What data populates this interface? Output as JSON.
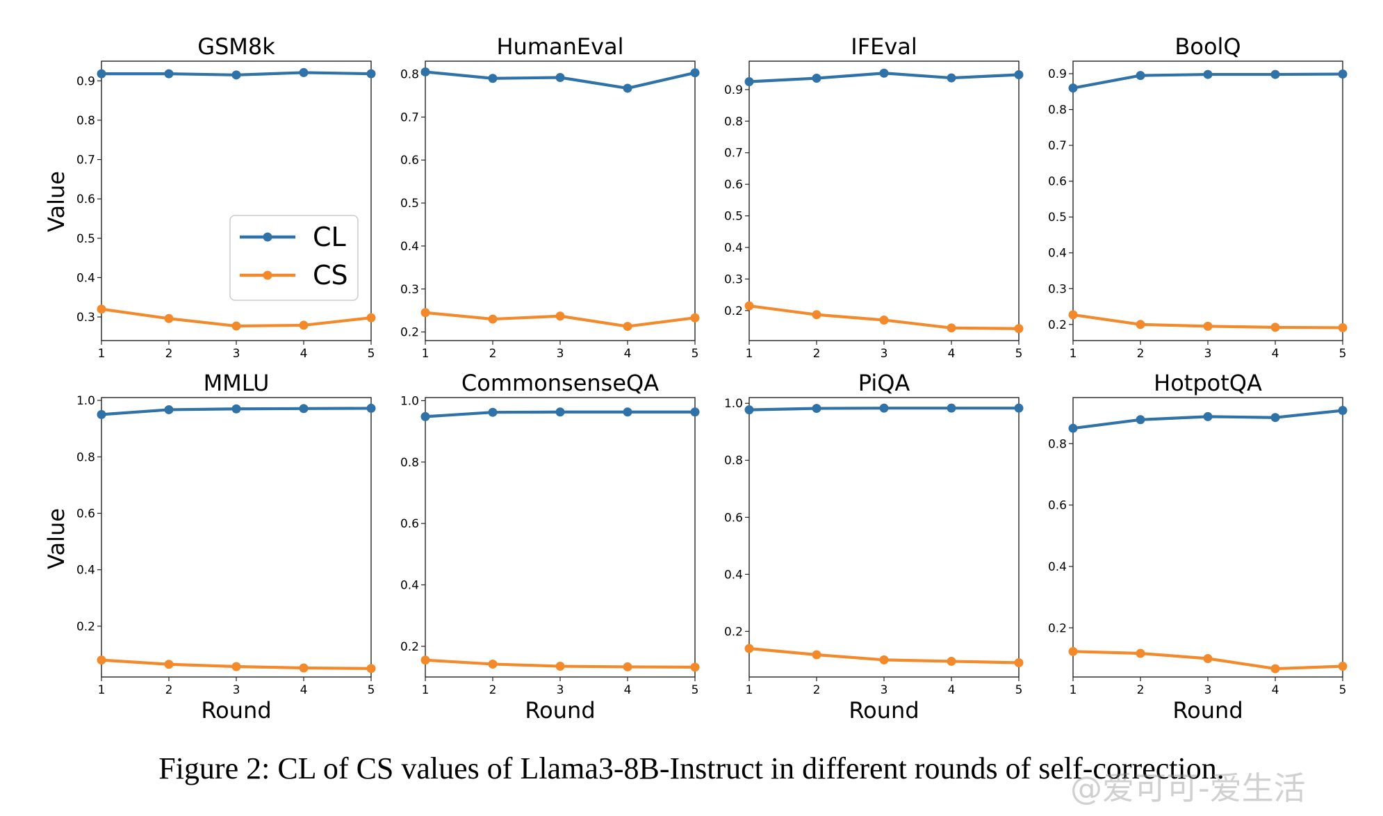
{
  "colors": {
    "CL": "#2f72a8",
    "CS": "#f28a2b"
  },
  "legend": {
    "items": [
      "CL",
      "CS"
    ]
  },
  "shared": {
    "xlabel": "Round",
    "ylabel": "Value"
  },
  "caption": "Figure 2: CL of CS values of Llama3-8B-Instruct in different rounds of self-correction.",
  "watermark": "@爱可可-爱生活",
  "chart_data": [
    {
      "type": "line",
      "title": "GSM8k",
      "x": [
        1,
        2,
        3,
        4,
        5
      ],
      "xlim": [
        1,
        5
      ],
      "ylim": [
        0.24,
        0.95
      ],
      "yticks": [
        "0.3",
        "0.4",
        "0.5",
        "0.6",
        "0.7",
        "0.8",
        "0.9"
      ],
      "series": [
        {
          "name": "CL",
          "values": [
            0.918,
            0.918,
            0.915,
            0.921,
            0.918
          ]
        },
        {
          "name": "CS",
          "values": [
            0.32,
            0.296,
            0.277,
            0.279,
            0.298
          ]
        }
      ]
    },
    {
      "type": "line",
      "title": "HumanEval",
      "x": [
        1,
        2,
        3,
        4,
        5
      ],
      "xlim": [
        1,
        5
      ],
      "ylim": [
        0.18,
        0.83
      ],
      "yticks": [
        "0.2",
        "0.3",
        "0.4",
        "0.5",
        "0.6",
        "0.7",
        "0.8"
      ],
      "series": [
        {
          "name": "CL",
          "values": [
            0.805,
            0.79,
            0.792,
            0.767,
            0.803
          ]
        },
        {
          "name": "CS",
          "values": [
            0.245,
            0.23,
            0.237,
            0.213,
            0.233
          ]
        }
      ]
    },
    {
      "type": "line",
      "title": "IFEval",
      "x": [
        1,
        2,
        3,
        4,
        5
      ],
      "xlim": [
        1,
        5
      ],
      "ylim": [
        0.105,
        0.99
      ],
      "yticks": [
        "0.2",
        "0.3",
        "0.4",
        "0.5",
        "0.6",
        "0.7",
        "0.8",
        "0.9"
      ],
      "series": [
        {
          "name": "CL",
          "values": [
            0.925,
            0.936,
            0.952,
            0.937,
            0.947
          ]
        },
        {
          "name": "CS",
          "values": [
            0.215,
            0.187,
            0.17,
            0.145,
            0.143
          ]
        }
      ]
    },
    {
      "type": "line",
      "title": "BoolQ",
      "x": [
        1,
        2,
        3,
        4,
        5
      ],
      "xlim": [
        1,
        5
      ],
      "ylim": [
        0.155,
        0.935
      ],
      "yticks": [
        "0.2",
        "0.3",
        "0.4",
        "0.5",
        "0.6",
        "0.7",
        "0.8",
        "0.9"
      ],
      "series": [
        {
          "name": "CL",
          "values": [
            0.86,
            0.895,
            0.898,
            0.898,
            0.899
          ]
        },
        {
          "name": "CS",
          "values": [
            0.227,
            0.2,
            0.195,
            0.192,
            0.191
          ]
        }
      ]
    },
    {
      "type": "line",
      "title": "MMLU",
      "x": [
        1,
        2,
        3,
        4,
        5
      ],
      "xlim": [
        1,
        5
      ],
      "ylim": [
        0.02,
        1.01
      ],
      "yticks": [
        "0.2",
        "0.4",
        "0.6",
        "0.8",
        "1.0"
      ],
      "series": [
        {
          "name": "CL",
          "values": [
            0.95,
            0.967,
            0.97,
            0.971,
            0.972
          ]
        },
        {
          "name": "CS",
          "values": [
            0.08,
            0.065,
            0.057,
            0.052,
            0.05
          ]
        }
      ]
    },
    {
      "type": "line",
      "title": "CommonsenseQA",
      "x": [
        1,
        2,
        3,
        4,
        5
      ],
      "xlim": [
        1,
        5
      ],
      "ylim": [
        0.1,
        1.01
      ],
      "yticks": [
        "0.2",
        "0.4",
        "0.6",
        "0.8",
        "1.0"
      ],
      "series": [
        {
          "name": "CL",
          "values": [
            0.948,
            0.962,
            0.963,
            0.963,
            0.963
          ]
        },
        {
          "name": "CS",
          "values": [
            0.155,
            0.142,
            0.135,
            0.133,
            0.132
          ]
        }
      ]
    },
    {
      "type": "line",
      "title": "PiQA",
      "x": [
        1,
        2,
        3,
        4,
        5
      ],
      "xlim": [
        1,
        5
      ],
      "ylim": [
        0.04,
        1.02
      ],
      "yticks": [
        "0.2",
        "0.4",
        "0.6",
        "0.8",
        "1.0"
      ],
      "series": [
        {
          "name": "CL",
          "values": [
            0.977,
            0.982,
            0.983,
            0.983,
            0.983
          ]
        },
        {
          "name": "CS",
          "values": [
            0.14,
            0.118,
            0.1,
            0.095,
            0.09
          ]
        }
      ]
    },
    {
      "type": "line",
      "title": "HotpotQA",
      "x": [
        1,
        2,
        3,
        4,
        5
      ],
      "xlim": [
        1,
        5
      ],
      "ylim": [
        0.04,
        0.95
      ],
      "yticks": [
        "0.2",
        "0.4",
        "0.6",
        "0.8"
      ],
      "series": [
        {
          "name": "CL",
          "values": [
            0.85,
            0.878,
            0.888,
            0.885,
            0.908
          ]
        },
        {
          "name": "CS",
          "values": [
            0.123,
            0.117,
            0.1,
            0.067,
            0.075
          ]
        }
      ]
    }
  ]
}
